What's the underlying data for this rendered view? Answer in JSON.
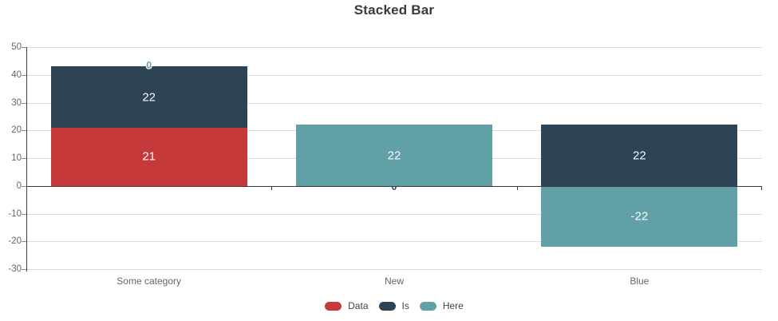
{
  "chart_data": {
    "type": "bar",
    "stacked": true,
    "title": "Stacked Bar",
    "categories": [
      "Some category",
      "New",
      "Blue"
    ],
    "series": [
      {
        "name": "Data",
        "color": "#c6393b",
        "values": [
          21,
          0,
          0
        ]
      },
      {
        "name": "Is",
        "color": "#2e4354",
        "values": [
          22,
          0,
          22
        ]
      },
      {
        "name": "Here",
        "color": "#62a0a8",
        "values": [
          0,
          22,
          -22
        ]
      }
    ],
    "visible_bar_labels": [
      {
        "category_index": 0,
        "series": "Data",
        "text": "21"
      },
      {
        "category_index": 0,
        "series": "Is",
        "text": "22"
      },
      {
        "category_index": 1,
        "series": "Here",
        "text": "22"
      },
      {
        "category_index": 2,
        "series": "Is",
        "text": "22"
      },
      {
        "category_index": 2,
        "series": "Here",
        "text": "-22"
      }
    ],
    "zero_value_labels": [
      {
        "category_index": 0,
        "series": "Here",
        "text": "0",
        "anchor_value": 43,
        "placement": "above"
      },
      {
        "category_index": 1,
        "series": "Is",
        "text": "0",
        "anchor_value": 0,
        "placement": "behind"
      }
    ],
    "y_ticks": [
      50,
      40,
      30,
      20,
      10,
      0,
      -10,
      -20,
      -30
    ],
    "ylim": [
      -30,
      50
    ],
    "grid": true,
    "legend_position": "bottom",
    "legend_items": [
      {
        "label": "Data",
        "color": "#c6393b"
      },
      {
        "label": "Is",
        "color": "#2e4354"
      },
      {
        "label": "Here",
        "color": "#62a0a8"
      }
    ]
  },
  "colors": {
    "background": "#ffffff",
    "title_text": "#3a3a3a",
    "grid_line": "#dcdcdc",
    "axis_line": "#3a3a3a",
    "tick_mark": "#888888",
    "tick_label": "#666666",
    "category_label": "#666666",
    "bar_label": "#f8f8f8",
    "legend_text": "#444444"
  }
}
